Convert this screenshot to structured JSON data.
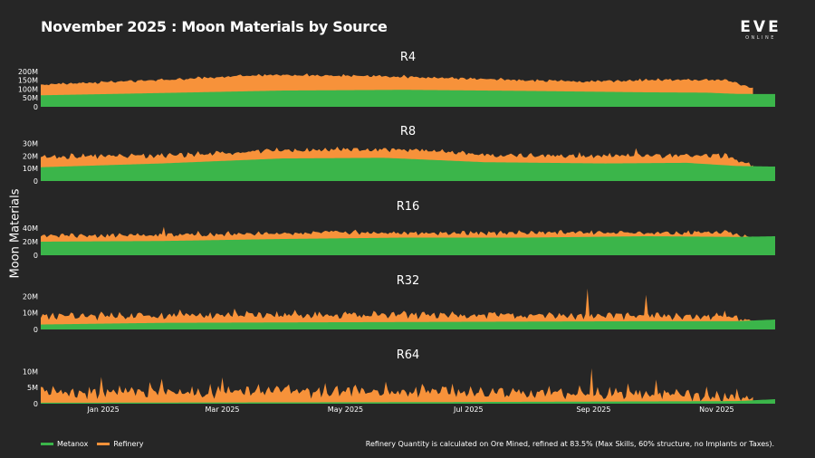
{
  "title": "November 2025 : Moon Materials by Source",
  "logo": {
    "main": "EVE",
    "sub": "ONLINE"
  },
  "footnote": "Refinery Quantity is calculated on Ore Mined, refined at 83.5% (Max Skills, 60% structure, no Implants or Taxes).",
  "colors": {
    "metanox": "#3bb54a",
    "refinery": "#f7923a",
    "background": "#262626",
    "text": "#ffffff"
  },
  "chart_data": {
    "type": "area",
    "title": "November 2025 : Moon Materials by Source",
    "ylabel": "Moon Materials",
    "x_range": [
      "2024-12-01",
      "2025-11-30"
    ],
    "x_ticks": [
      {
        "date": "2025-01-01",
        "label": "Jan 2025"
      },
      {
        "date": "2025-03-01",
        "label": "Mar 2025"
      },
      {
        "date": "2025-05-01",
        "label": "May 2025"
      },
      {
        "date": "2025-07-01",
        "label": "Jul 2025"
      },
      {
        "date": "2025-09-01",
        "label": "Sep 2025"
      },
      {
        "date": "2025-11-01",
        "label": "Nov 2025"
      }
    ],
    "refinery_end": "2025-11-19",
    "legend": [
      {
        "name": "Metanox",
        "color": "#3bb54a"
      },
      {
        "name": "Refinery",
        "color": "#f7923a"
      }
    ],
    "panels": [
      {
        "name": "R4",
        "ylim": [
          0,
          215
        ],
        "yticks": [
          {
            "v": 0,
            "label": "0"
          },
          {
            "v": 50,
            "label": "50M"
          },
          {
            "v": 100,
            "label": "100M"
          },
          {
            "v": 150,
            "label": "150M"
          },
          {
            "v": 200,
            "label": "200M"
          }
        ],
        "metanox": [
          [
            0,
            65
          ],
          [
            60,
            78
          ],
          [
            120,
            92
          ],
          [
            180,
            96
          ],
          [
            240,
            90
          ],
          [
            300,
            82
          ],
          [
            330,
            80
          ],
          [
            345,
            73
          ],
          [
            364,
            72
          ]
        ],
        "refinery_total": [
          [
            0,
            125
          ],
          [
            60,
            150
          ],
          [
            110,
            178
          ],
          [
            160,
            175
          ],
          [
            220,
            155
          ],
          [
            270,
            140
          ],
          [
            300,
            150
          ],
          [
            340,
            150
          ],
          [
            351,
            112
          ]
        ],
        "spike_amp": 10,
        "spikes": []
      },
      {
        "name": "R8",
        "ylim": [
          0,
          31
        ],
        "yticks": [
          {
            "v": 0,
            "label": "0"
          },
          {
            "v": 10,
            "label": "10M"
          },
          {
            "v": 20,
            "label": "20M"
          },
          {
            "v": 30,
            "label": "30M"
          }
        ],
        "metanox": [
          [
            0,
            11
          ],
          [
            60,
            14
          ],
          [
            120,
            18
          ],
          [
            170,
            18.5
          ],
          [
            220,
            15
          ],
          [
            280,
            14
          ],
          [
            320,
            14.5
          ],
          [
            345,
            12
          ],
          [
            364,
            11.5
          ]
        ],
        "refinery_total": [
          [
            0,
            19
          ],
          [
            60,
            20
          ],
          [
            120,
            24
          ],
          [
            180,
            25
          ],
          [
            230,
            20
          ],
          [
            300,
            20
          ],
          [
            340,
            20
          ],
          [
            351,
            13
          ]
        ],
        "spike_amp": 2.8,
        "spikes": [
          [
            295,
            6
          ]
        ]
      },
      {
        "name": "R16",
        "ylim": [
          0,
          56
        ],
        "yticks": [
          {
            "v": 0,
            "label": "0"
          },
          {
            "v": 20,
            "label": "20M"
          },
          {
            "v": 40,
            "label": "40M"
          }
        ],
        "metanox": [
          [
            0,
            20
          ],
          [
            60,
            21
          ],
          [
            120,
            24
          ],
          [
            180,
            26
          ],
          [
            240,
            26
          ],
          [
            300,
            28
          ],
          [
            345,
            27
          ],
          [
            364,
            28
          ]
        ],
        "refinery_total": [
          [
            0,
            28
          ],
          [
            80,
            30
          ],
          [
            150,
            33
          ],
          [
            220,
            32
          ],
          [
            300,
            33
          ],
          [
            340,
            33
          ],
          [
            351,
            26
          ]
        ],
        "spike_amp": 4.5,
        "spikes": [
          [
            61,
            14
          ]
        ]
      },
      {
        "name": "R32",
        "ylim": [
          0,
          23
        ],
        "yticks": [
          {
            "v": 0,
            "label": "0"
          },
          {
            "v": 10,
            "label": "10M"
          },
          {
            "v": 20,
            "label": "20M"
          }
        ],
        "metanox": [
          [
            0,
            3
          ],
          [
            60,
            4
          ],
          [
            180,
            4.5
          ],
          [
            300,
            5
          ],
          [
            345,
            5
          ],
          [
            364,
            6
          ]
        ],
        "refinery_total": [
          [
            0,
            7.5
          ],
          [
            120,
            8.5
          ],
          [
            250,
            8
          ],
          [
            340,
            8
          ],
          [
            351,
            4.5
          ]
        ],
        "spike_amp": 3.2,
        "spikes": [
          [
            271,
            15
          ],
          [
            300,
            10
          ],
          [
            96,
            5
          ]
        ]
      },
      {
        "name": "R64",
        "ylim": [
          0,
          11.5
        ],
        "yticks": [
          {
            "v": 0,
            "label": "0"
          },
          {
            "v": 5,
            "label": "5M"
          },
          {
            "v": 10,
            "label": "10M"
          }
        ],
        "metanox": [
          [
            0,
            0.3
          ],
          [
            200,
            0.5
          ],
          [
            345,
            0.8
          ],
          [
            364,
            1.4
          ]
        ],
        "refinery_total": [
          [
            0,
            3.2
          ],
          [
            150,
            3.5
          ],
          [
            300,
            3
          ],
          [
            351,
            1.5
          ]
        ],
        "spike_amp": 2.6,
        "spikes": [
          [
            90,
            5.5
          ],
          [
            273,
            5.5
          ],
          [
            305,
            4.0
          ],
          [
            30,
            3.0
          ],
          [
            60,
            3.0
          ]
        ]
      }
    ]
  }
}
